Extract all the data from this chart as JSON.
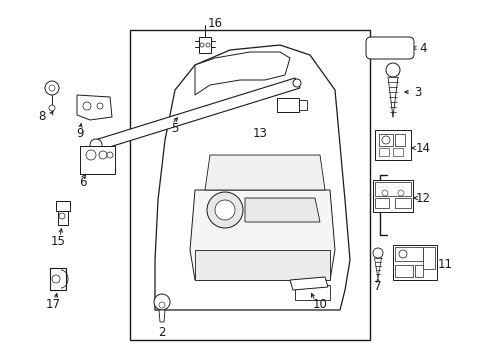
{
  "background_color": "#ffffff",
  "line_color": "#1a1a1a",
  "fig_width": 4.89,
  "fig_height": 3.6,
  "dpi": 100,
  "label_fontsize": 8.5,
  "small_fontsize": 7.0
}
